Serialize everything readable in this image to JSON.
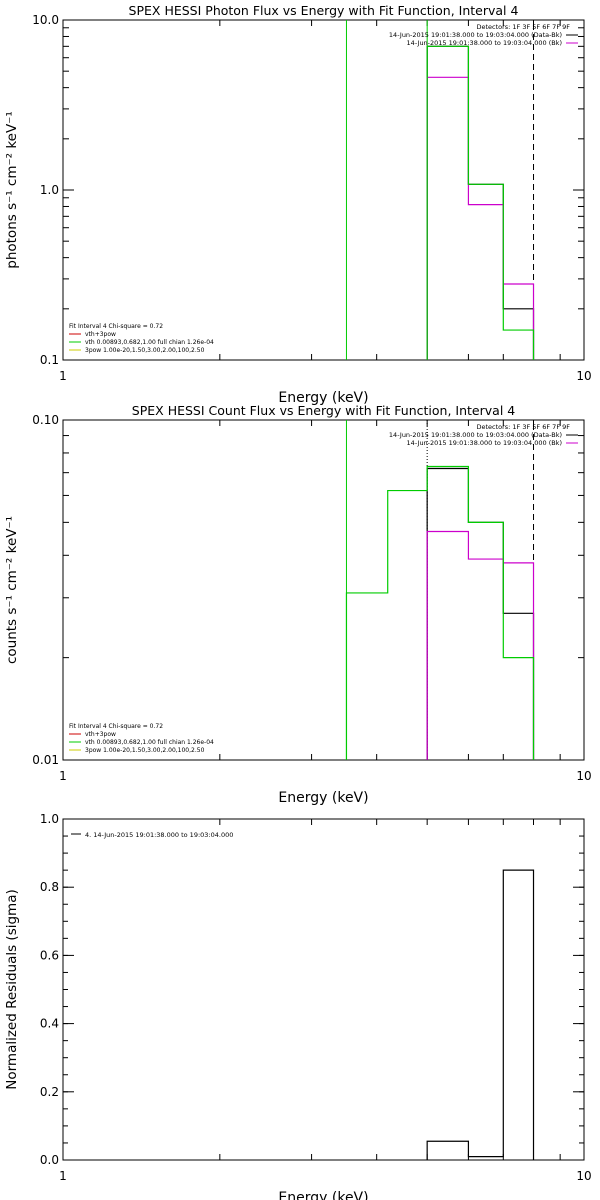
{
  "colors": {
    "axes": "#000000",
    "data": "#000000",
    "model": "#cc00cc",
    "fit": "#00cc00",
    "component": "#cc0000",
    "component2": "#cccc00"
  },
  "chart_data": [
    {
      "type": "line",
      "title": "SPEX HESSI Photon Flux vs Energy with Fit Function, Interval 4",
      "xlabel": "Energy (keV)",
      "ylabel": "photons s⁻¹ cm⁻² keV⁻¹",
      "xscale": "log",
      "yscale": "log",
      "xlim": [
        1,
        10
      ],
      "ylim": [
        0.1,
        10
      ],
      "xticks": [
        1,
        10
      ],
      "xtick_labels": [
        "1",
        "10"
      ],
      "yticks": [
        0.1,
        1,
        10
      ],
      "ytick_labels": [
        "0.1",
        "1.0",
        "10.0"
      ],
      "legend_top": [
        "Detectors: 1F 3F 5F 6F 7F 9F",
        "14-Jun-2015 19:01:38.000 to 19:03:04.000 (Data-Bk)",
        "14-Jun-2015 19:01:38.000 to 19:03:04.000 (Bk)"
      ],
      "legend_bottom": [
        "Fit Interval 4   Chi-square = 0.72",
        "vth+3pow",
        "vth 0.00893,0.682,1.00  full chian 1.26e-04",
        "3pow 1.00e-20,1.50,3.00,2.00,100,2.50"
      ],
      "series": [
        {
          "name": "14-Jun-2015 19:01:38.000 to 19:03:04.000 (Data-Bk)",
          "type": "step",
          "edges": [
            5,
            6,
            7,
            8
          ],
          "values": [
            7.0,
            1.08,
            0.2
          ]
        },
        {
          "name": "14-Jun-2015 19:01:38.000 to 19:03:04.000 (Bk)",
          "type": "step",
          "edges": [
            5,
            6,
            7,
            8
          ],
          "values": [
            4.6,
            0.82,
            0.28
          ]
        },
        {
          "name": "vth+3pow",
          "type": "step",
          "edges": [
            5,
            6,
            7,
            8
          ],
          "values": [
            7.0,
            1.08,
            0.15
          ]
        }
      ],
      "vlines": [
        {
          "x": 3.5,
          "style": "solid",
          "color": "fit"
        },
        {
          "x": 5,
          "style": "solid",
          "color": "fit"
        },
        {
          "x": 5,
          "style": "solid",
          "color": "model",
          "ymax": 4.6
        },
        {
          "x": 8,
          "style": "dashed",
          "color": "data"
        }
      ]
    },
    {
      "type": "line",
      "title": "SPEX HESSI Count Flux vs Energy with Fit Function, Interval 4",
      "xlabel": "Energy (keV)",
      "ylabel": "counts s⁻¹ cm⁻² keV⁻¹",
      "xscale": "log",
      "yscale": "log",
      "xlim": [
        1,
        10
      ],
      "ylim": [
        0.01,
        0.1
      ],
      "xticks": [
        1,
        10
      ],
      "xtick_labels": [
        "1",
        "10"
      ],
      "yticks": [
        0.01,
        0.1
      ],
      "ytick_labels": [
        "0.01",
        "0.10"
      ],
      "legend_top": [
        "Detectors: 1F 3F 5F 6F 7F 9F",
        "14-Jun-2015 19:01:38.000 to 19:03:04.000 (Data-Bk)",
        "14-Jun-2015 19:01:38.000 to 19:03:04.000 (Bk)"
      ],
      "legend_bottom": [
        "Fit Interval 4   Chi-square = 0.72",
        "vth+3pow",
        "vth 0.00893,0.682,1.00  full chian 1.26e-04",
        "3pow 1.00e-20,1.50,3.00,2.00,100,2.50"
      ],
      "series": [
        {
          "name": "14-Jun-2015 19:01:38.000 to 19:03:04.000 (Data-Bk)",
          "type": "step",
          "edges": [
            5,
            6,
            7,
            8
          ],
          "values": [
            0.072,
            0.05,
            0.027
          ]
        },
        {
          "name": "14-Jun-2015 19:01:38.000 to 19:03:04.000 (Bk)",
          "type": "step",
          "edges": [
            5,
            6,
            7,
            8
          ],
          "values": [
            0.047,
            0.039,
            0.038
          ]
        },
        {
          "name": "vth+3pow",
          "type": "step",
          "edges": [
            3.5,
            4.2,
            5,
            6,
            7,
            8
          ],
          "values": [
            0.031,
            0.062,
            0.073,
            0.05,
            0.02
          ]
        }
      ],
      "vlines": [
        {
          "x": 3.5,
          "style": "solid",
          "color": "fit"
        },
        {
          "x": 5,
          "style": "dotted",
          "color": "data"
        },
        {
          "x": 5,
          "style": "solid",
          "color": "model",
          "ymax": 0.047
        },
        {
          "x": 8,
          "style": "dashed",
          "color": "data"
        }
      ]
    },
    {
      "type": "line",
      "title": "",
      "xlabel": "Energy (keV)",
      "ylabel": "Normalized Residuals (sigma)",
      "xscale": "log",
      "yscale": "linear",
      "xlim": [
        1,
        10
      ],
      "ylim": [
        0,
        1.0
      ],
      "xticks": [
        1,
        10
      ],
      "xtick_labels": [
        "1",
        "10"
      ],
      "yticks": [
        0,
        0.2,
        0.4,
        0.6,
        0.8,
        1.0
      ],
      "ytick_labels": [
        "0.0",
        "0.2",
        "0.4",
        "0.6",
        "0.8",
        "1.0"
      ],
      "legend_top": [
        "4. 14-Jun-2015 19:01:38.000 to 19:03:04.000"
      ],
      "series": [
        {
          "name": "4. 14-Jun-2015 19:01:38.000 to 19:03:04.000",
          "type": "step",
          "edges": [
            5,
            6,
            7,
            8
          ],
          "values": [
            0.055,
            0.01,
            0.85
          ]
        }
      ]
    }
  ]
}
